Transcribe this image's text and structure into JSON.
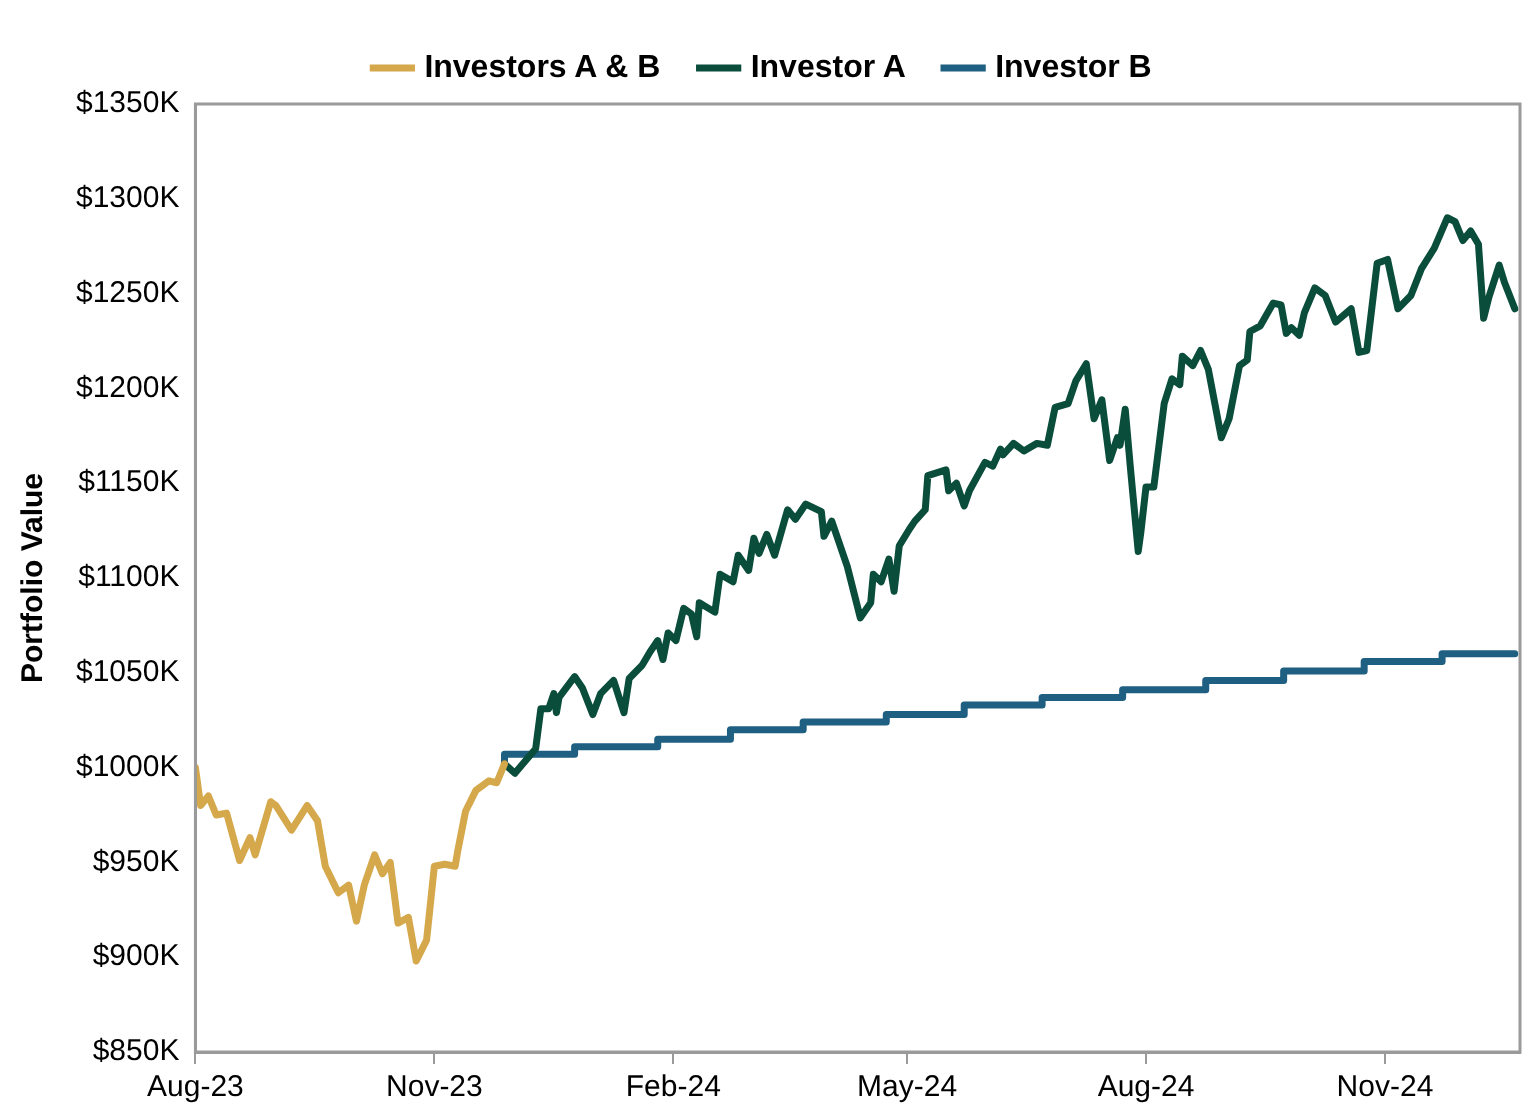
{
  "chart_data": {
    "type": "line",
    "ylabel": "Portfolio Value",
    "legend": "top",
    "grid": false,
    "marker": "none",
    "line_style": "solid",
    "xlim": [
      "2023-08-01",
      "2024-12-23"
    ],
    "xticks": [
      {
        "value": "2023-08-01",
        "label": "Aug-23"
      },
      {
        "value": "2023-11-01",
        "label": "Nov-23"
      },
      {
        "value": "2024-02-01",
        "label": "Feb-24"
      },
      {
        "value": "2024-05-01",
        "label": "May-24"
      },
      {
        "value": "2024-08-01",
        "label": "Aug-24"
      },
      {
        "value": "2024-11-01",
        "label": "Nov-24"
      }
    ],
    "ylim": [
      850,
      1350
    ],
    "yticks": [
      {
        "value": 850,
        "label": "$850K"
      },
      {
        "value": 900,
        "label": "$900K"
      },
      {
        "value": 950,
        "label": "$950K"
      },
      {
        "value": 1000,
        "label": "$1000K"
      },
      {
        "value": 1050,
        "label": "$1050K"
      },
      {
        "value": 1100,
        "label": "$1100K"
      },
      {
        "value": 1150,
        "label": "$1150K"
      },
      {
        "value": 1200,
        "label": "$1200K"
      },
      {
        "value": 1250,
        "label": "$1250K"
      },
      {
        "value": 1300,
        "label": "$1300K"
      },
      {
        "value": 1350,
        "label": "$1350K"
      }
    ],
    "series": [
      {
        "name": "Investors A & B",
        "color": "#d4a84b",
        "type": "line",
        "x": [
          "2023-08-01",
          "2023-08-03",
          "2023-08-06",
          "2023-08-09",
          "2023-08-13",
          "2023-08-18",
          "2023-08-22",
          "2023-08-24",
          "2023-08-30",
          "2023-09-01",
          "2023-09-07",
          "2023-09-13",
          "2023-09-17",
          "2023-09-20",
          "2023-09-25",
          "2023-09-29",
          "2023-10-02",
          "2023-10-05",
          "2023-10-09",
          "2023-10-12",
          "2023-10-15",
          "2023-10-18",
          "2023-10-22",
          "2023-10-25",
          "2023-10-29",
          "2023-11-01",
          "2023-11-05",
          "2023-11-09",
          "2023-11-10",
          "2023-11-13",
          "2023-11-17",
          "2023-11-22",
          "2023-11-25",
          "2023-11-28"
        ],
        "values": [
          1000,
          980,
          985,
          975,
          976,
          951,
          963,
          954,
          982,
          980,
          967,
          980,
          972,
          948,
          934,
          938,
          919,
          938,
          954,
          944,
          950,
          918,
          921,
          898,
          909,
          948,
          949,
          948,
          956,
          977,
          988,
          993,
          992,
          1002
        ]
      },
      {
        "name": "Investor A",
        "color": "#0b4d3b",
        "type": "line",
        "x": [
          "2023-11-28",
          "2023-12-02",
          "2023-12-10",
          "2023-12-12",
          "2023-12-15",
          "2023-12-17",
          "2023-12-18",
          "2023-12-19",
          "2023-12-25",
          "2023-12-28",
          "2024-01-01",
          "2024-01-04",
          "2024-01-09",
          "2024-01-13",
          "2024-01-15",
          "2024-01-20",
          "2024-01-23",
          "2024-01-26",
          "2024-01-28",
          "2024-01-30",
          "2024-02-02",
          "2024-02-05",
          "2024-02-08",
          "2024-02-10",
          "2024-02-11",
          "2024-02-17",
          "2024-02-19",
          "2024-02-24",
          "2024-02-26",
          "2024-03-01",
          "2024-03-03",
          "2024-03-05",
          "2024-03-08",
          "2024-03-11",
          "2024-03-16",
          "2024-03-19",
          "2024-03-23",
          "2024-03-29",
          "2024-03-30",
          "2024-04-02",
          "2024-04-08",
          "2024-04-13",
          "2024-04-17",
          "2024-04-18",
          "2024-04-21",
          "2024-04-24",
          "2024-04-26",
          "2024-04-28",
          "2024-05-02",
          "2024-05-04",
          "2024-05-08",
          "2024-05-09",
          "2024-05-16",
          "2024-05-17",
          "2024-05-20",
          "2024-05-23",
          "2024-05-25",
          "2024-05-31",
          "2024-06-03",
          "2024-06-06",
          "2024-06-07",
          "2024-06-11",
          "2024-06-15",
          "2024-06-20",
          "2024-06-24",
          "2024-06-27",
          "2024-07-02",
          "2024-07-05",
          "2024-07-09",
          "2024-07-12",
          "2024-07-15",
          "2024-07-18",
          "2024-07-21",
          "2024-07-22",
          "2024-07-24",
          "2024-07-26",
          "2024-07-29",
          "2024-07-30",
          "2024-08-01",
          "2024-08-04",
          "2024-08-08",
          "2024-08-11",
          "2024-08-14",
          "2024-08-15",
          "2024-08-19",
          "2024-08-22",
          "2024-08-25",
          "2024-08-30",
          "2024-09-02",
          "2024-09-06",
          "2024-09-09",
          "2024-09-10",
          "2024-09-14",
          "2024-09-19",
          "2024-09-22",
          "2024-09-24",
          "2024-09-26",
          "2024-09-29",
          "2024-10-01",
          "2024-10-05",
          "2024-10-09",
          "2024-10-13",
          "2024-10-19",
          "2024-10-22",
          "2024-10-25",
          "2024-10-29",
          "2024-11-02",
          "2024-11-06",
          "2024-11-11",
          "2024-11-15",
          "2024-11-20",
          "2024-11-25",
          "2024-11-28",
          "2024-12-01",
          "2024-12-04",
          "2024-12-07",
          "2024-12-09",
          "2024-12-11",
          "2024-12-15",
          "2024-12-17",
          "2024-12-21"
        ],
        "values": [
          1002,
          997,
          1010,
          1031,
          1031,
          1039,
          1029,
          1037,
          1048,
          1042,
          1028,
          1039,
          1046,
          1029,
          1047,
          1054,
          1061,
          1067,
          1057,
          1071,
          1067,
          1084,
          1081,
          1069,
          1087,
          1082,
          1102,
          1098,
          1112,
          1104,
          1121,
          1113,
          1123,
          1112,
          1136,
          1131,
          1139,
          1135,
          1122,
          1130,
          1106,
          1079,
          1087,
          1102,
          1098,
          1110,
          1093,
          1117,
          1126,
          1130,
          1136,
          1154,
          1157,
          1146,
          1150,
          1138,
          1146,
          1161,
          1159,
          1168,
          1165,
          1171,
          1167,
          1171,
          1170,
          1190,
          1192,
          1204,
          1213,
          1184,
          1194,
          1162,
          1174,
          1170,
          1189,
          1158,
          1114,
          1124,
          1148,
          1148,
          1192,
          1205,
          1202,
          1217,
          1212,
          1220,
          1210,
          1174,
          1184,
          1212,
          1215,
          1230,
          1233,
          1245,
          1244,
          1229,
          1232,
          1228,
          1240,
          1253,
          1249,
          1235,
          1242,
          1219,
          1220,
          1266,
          1268,
          1242,
          1249,
          1263,
          1274,
          1290,
          1288,
          1278,
          1283,
          1276,
          1237,
          1248,
          1265,
          1256,
          1242
        ]
      },
      {
        "name": "Investor B",
        "color": "#1f5f82",
        "type": "step",
        "x": [
          "2023-11-28",
          "2023-12-25",
          "2024-01-26",
          "2024-02-23",
          "2024-03-22",
          "2024-04-23",
          "2024-05-23",
          "2024-06-22",
          "2024-07-23",
          "2024-08-24",
          "2024-09-23",
          "2024-10-24",
          "2024-11-23",
          "2024-12-20",
          "2024-12-21"
        ],
        "values": [
          1002,
          1007,
          1011,
          1015,
          1020,
          1024,
          1028,
          1033,
          1037,
          1041,
          1046,
          1051,
          1056,
          1060,
          1060
        ]
      }
    ]
  }
}
